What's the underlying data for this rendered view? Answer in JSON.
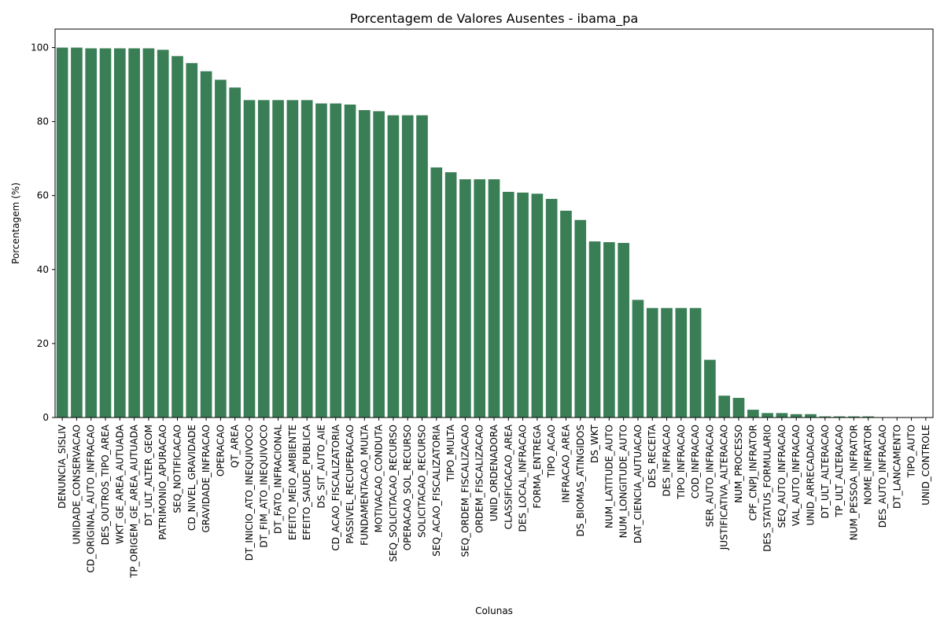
{
  "chart_data": {
    "type": "bar",
    "title": "Porcentagem de Valores Ausentes - ibama_pa",
    "xlabel": "Colunas",
    "ylabel": "Porcentagem (%)",
    "ylim": [
      0,
      105
    ],
    "yticks": [
      0,
      20,
      40,
      60,
      80,
      100
    ],
    "bar_color": "#3a7e56",
    "grid": false,
    "categories": [
      "DENUNCIA_SISLIV",
      "UNIDADE_CONSERVACAO",
      "CD_ORIGINAL_AUTO_INFRACAO",
      "DES_OUTROS_TIPO_AREA",
      "WKT_GE_AREA_AUTUADA",
      "TP_ORIGEM_GE_AREA_AUTUADA",
      "DT_ULT_ALTER_GEOM",
      "PATRIMONIO_APURACAO",
      "SEQ_NOTIFICACAO",
      "CD_NIVEL_GRAVIDADE",
      "GRAVIDADE_INFRACAO",
      "OPERACAO",
      "QT_AREA",
      "DT_INICIO_ATO_INEQUIVOCO",
      "DT_FIM_ATO_INEQUIVOCO",
      "DT_FATO_INFRACIONAL",
      "EFEITO_MEIO_AMBIENTE",
      "EFEITO_SAUDE_PUBLICA",
      "DS_SIT_AUTO_AIE",
      "CD_ACAO_FISCALIZATORIA",
      "PASSIVEL_RECUPERACAO",
      "FUNDAMENTACAO_MULTA",
      "MOTIVACAO_CONDUTA",
      "SEQ_SOLICITACAO_RECURSO",
      "OPERACAO_SOL_RECURSO",
      "SOLICITACAO_RECURSO",
      "SEQ_ACAO_FISCALIZATORIA",
      "TIPO_MULTA",
      "SEQ_ORDEM_FISCALIZACAO",
      "ORDEM_FISCALIZACAO",
      "UNID_ORDENADORA",
      "CLASSIFICACAO_AREA",
      "DES_LOCAL_INFRACAO",
      "FORMA_ENTREGA",
      "TIPO_ACAO",
      "INFRACAO_AREA",
      "DS_BIOMAS_ATINGIDOS",
      "DS_WKT",
      "NUM_LATITUDE_AUTO",
      "NUM_LONGITUDE_AUTO",
      "DAT_CIENCIA_AUTUACAO",
      "DES_RECEITA",
      "DES_INFRACAO",
      "TIPO_INFRACAO",
      "COD_INFRACAO",
      "SER_AUTO_INFRACAO",
      "JUSTIFICATIVA_ALTERACAO",
      "NUM_PROCESSO",
      "CPF_CNPJ_INFRATOR",
      "DES_STATUS_FORMULARIO",
      "SEQ_AUTO_INFRACAO",
      "VAL_AUTO_INFRACAO",
      "UNID_ARRECADACAO",
      "DT_ULT_ALTERACAO",
      "TP_ULT_ALTERACAO",
      "NUM_PESSOA_INFRATOR",
      "NOME_INFRATOR",
      "DES_AUTO_INFRACAO",
      "DT_LANCAMENTO",
      "TIPO_AUTO",
      "UNID_CONTROLE"
    ],
    "values": [
      100.0,
      100.0,
      99.8,
      99.8,
      99.8,
      99.8,
      99.8,
      99.4,
      97.7,
      95.8,
      93.6,
      91.3,
      89.2,
      85.8,
      85.8,
      85.8,
      85.8,
      85.8,
      84.9,
      84.9,
      84.6,
      83.1,
      82.8,
      81.7,
      81.7,
      81.7,
      67.6,
      66.3,
      64.4,
      64.4,
      64.4,
      61.0,
      60.8,
      60.5,
      59.1,
      55.9,
      53.4,
      47.6,
      47.4,
      47.2,
      31.8,
      29.6,
      29.6,
      29.6,
      29.6,
      15.6,
      5.9,
      5.3,
      2.1,
      1.2,
      1.2,
      0.9,
      0.9,
      0.3,
      0.3,
      0.3,
      0.3,
      0.0,
      0.0,
      0.0,
      0.0
    ]
  }
}
